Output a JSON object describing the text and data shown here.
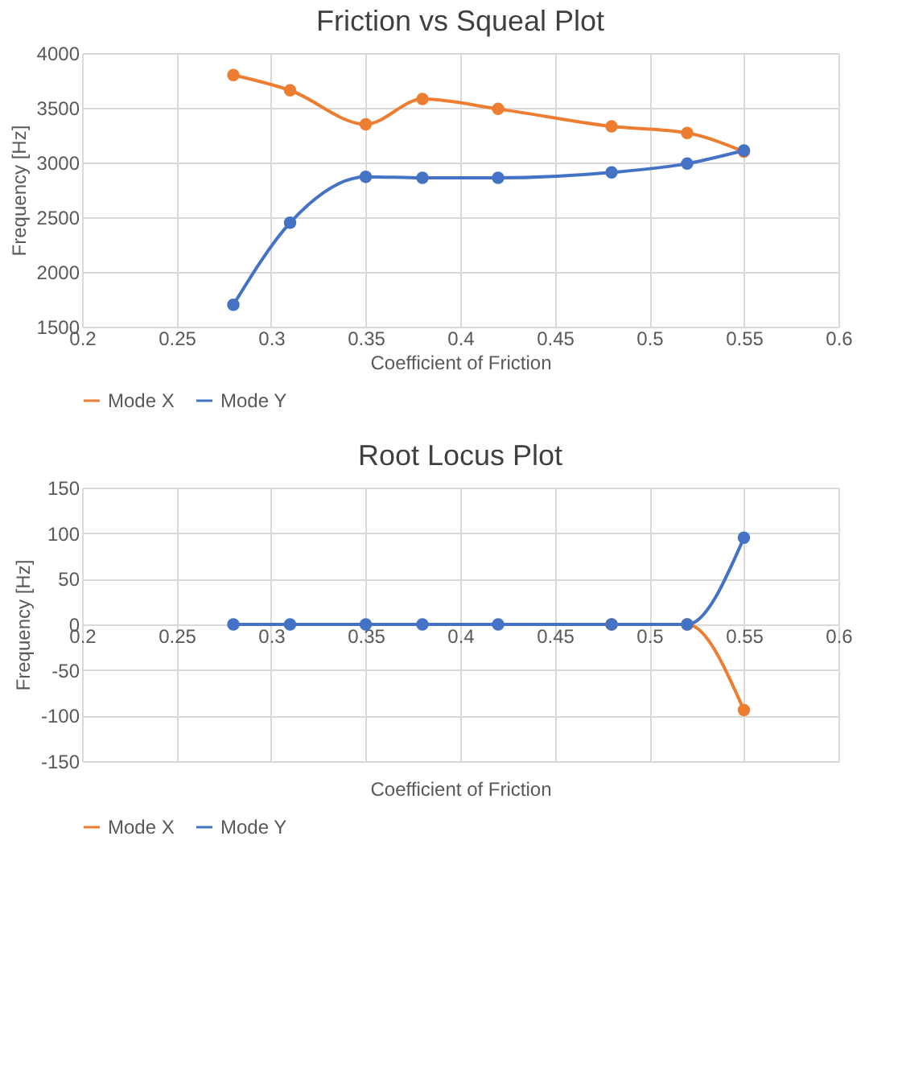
{
  "chart_data": [
    {
      "type": "line",
      "title": "Friction vs Squeal Plot",
      "xlabel": "Coefficient of Friction",
      "ylabel": "Frequency [Hz]",
      "x": [
        0.28,
        0.31,
        0.35,
        0.38,
        0.42,
        0.48,
        0.52,
        0.55
      ],
      "series": [
        {
          "name": "Mode X",
          "color": "#ed7d31",
          "values": [
            3800,
            3660,
            3350,
            3580,
            3490,
            3330,
            3270,
            3100
          ]
        },
        {
          "name": "Mode Y",
          "color": "#4472c4",
          "values": [
            1700,
            2450,
            2870,
            2860,
            2860,
            2910,
            2990,
            3110
          ]
        }
      ],
      "xlim": [
        0.2,
        0.6
      ],
      "xticks": [
        0.2,
        0.25,
        0.3,
        0.35,
        0.4,
        0.45,
        0.5,
        0.55,
        0.6
      ],
      "ylim": [
        1500,
        4000
      ],
      "yticks": [
        1500,
        2000,
        2500,
        3000,
        3500,
        4000
      ],
      "grid": true,
      "legend": "bottom",
      "marker": "circle",
      "line_style": "solid"
    },
    {
      "type": "line",
      "title": "Root Locus Plot",
      "xlabel": "Coefficient of Friction",
      "ylabel": "Frequency [Hz]",
      "x": [
        0.28,
        0.31,
        0.35,
        0.38,
        0.42,
        0.48,
        0.52,
        0.55
      ],
      "series": [
        {
          "name": "Mode X",
          "color": "#ed7d31",
          "values": [
            null,
            null,
            null,
            null,
            null,
            0,
            0,
            -94
          ]
        },
        {
          "name": "Mode Y",
          "color": "#4472c4",
          "values": [
            0,
            0,
            0,
            0,
            0,
            0,
            0,
            95
          ]
        }
      ],
      "xlim": [
        0.2,
        0.6
      ],
      "xticks": [
        0.2,
        0.25,
        0.3,
        0.35,
        0.4,
        0.45,
        0.5,
        0.55,
        0.6
      ],
      "ylim": [
        -150,
        150
      ],
      "yticks": [
        -150,
        -100,
        -50,
        0,
        50,
        100,
        150
      ],
      "grid": true,
      "legend": "bottom",
      "marker": "circle",
      "line_style": "solid"
    }
  ]
}
